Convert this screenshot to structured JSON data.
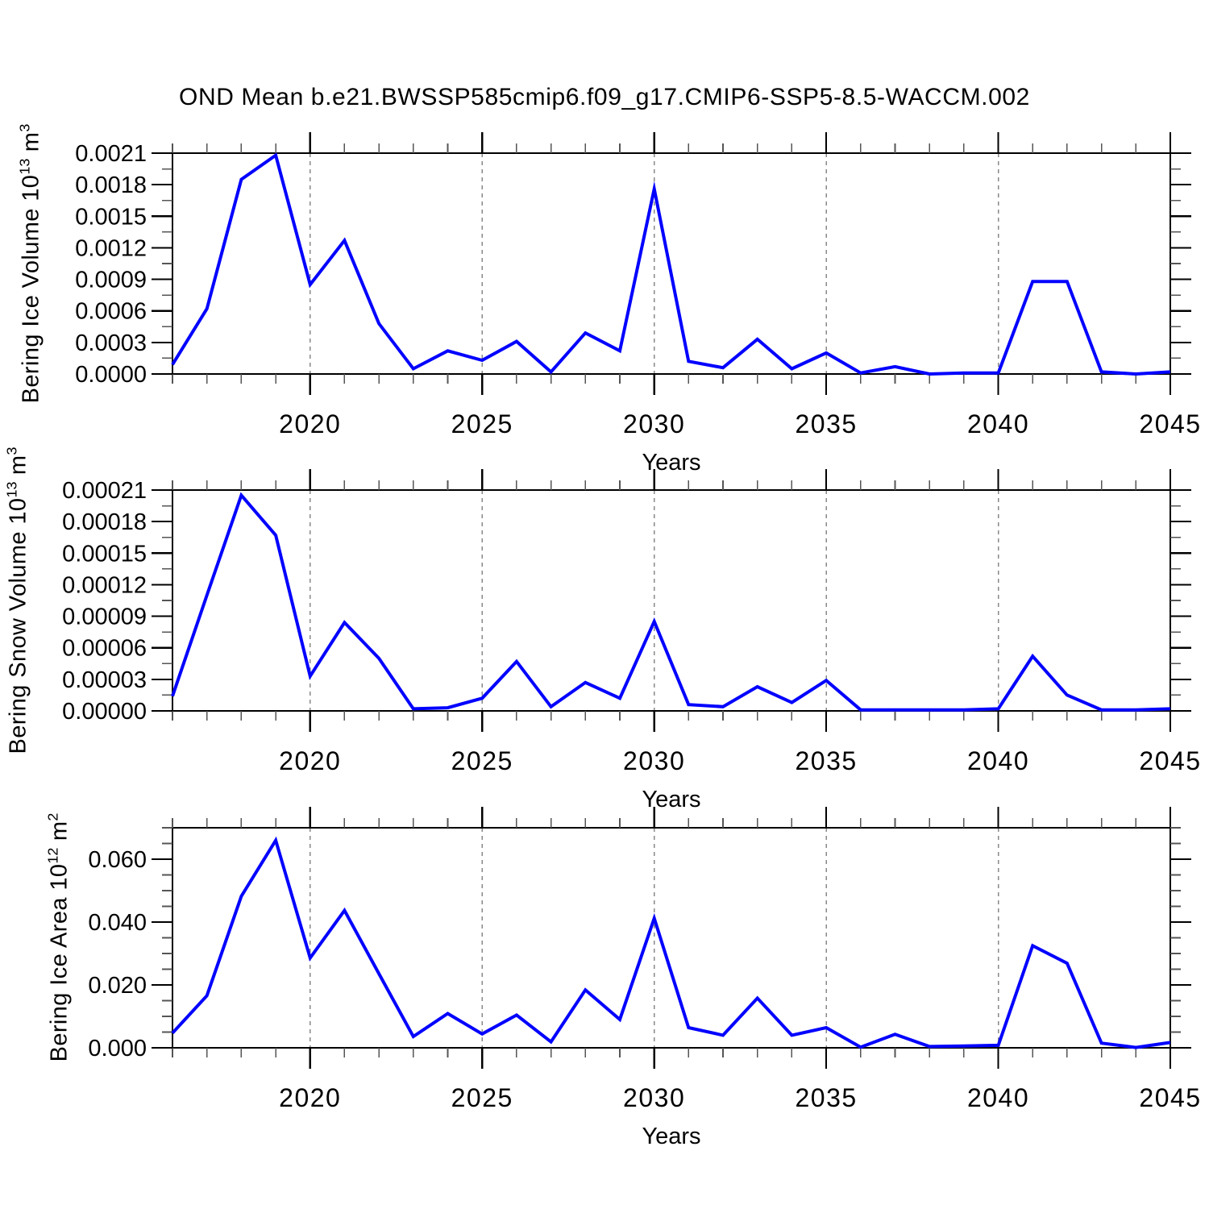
{
  "title": "OND Mean b.e21.BWSSP585cmip6.f09_g17.CMIP6-SSP5-8.5-WACCM.002",
  "chart_data": {
    "type": "line",
    "title": "OND Mean b.e21.BWSSP585cmip6.f09_g17.CMIP6-SSP5-8.5-WACCM.002",
    "xlabel": "Years",
    "xlim": [
      2016,
      2045
    ],
    "x_major_ticks": [
      2020,
      2025,
      2030,
      2035,
      2040,
      2045
    ],
    "x_minor_step": 1,
    "x_gridlines": [
      2020,
      2025,
      2030,
      2035,
      2040
    ],
    "grid_style": "dashed-vertical",
    "legend": "none",
    "line_color": "#0000ff",
    "x": [
      2016,
      2017,
      2018,
      2019,
      2020,
      2021,
      2022,
      2023,
      2024,
      2025,
      2026,
      2027,
      2028,
      2029,
      2030,
      2031,
      2032,
      2033,
      2034,
      2035,
      2036,
      2037,
      2038,
      2039,
      2040,
      2041,
      2042,
      2043,
      2044,
      2045
    ],
    "subplots": [
      {
        "name": "bering-ice-volume",
        "ylabel_text": "Bering Ice Volume 10",
        "ylabel_exp": "13",
        "ylabel_unit": " m",
        "ylabel_unit_exp": "3",
        "ylim": [
          0,
          0.0021
        ],
        "ytick_values": [
          0.0,
          0.0003,
          0.0006,
          0.0009,
          0.0012,
          0.0015,
          0.0018,
          0.0021
        ],
        "ytick_labels": [
          "0.0000",
          "0.0003",
          "0.0006",
          "0.0009",
          "0.0012",
          "0.0015",
          "0.0018",
          "0.0021"
        ],
        "y_minor_step": 0.00015,
        "values": [
          9e-05,
          0.00062,
          0.00185,
          0.00208,
          0.00085,
          0.00127,
          0.00048,
          5e-05,
          0.00022,
          0.00013,
          0.00031,
          2e-05,
          0.00039,
          0.00022,
          0.00176,
          0.00012,
          6e-05,
          0.00033,
          5e-05,
          0.0002,
          1e-05,
          7e-05,
          0.0,
          1e-05,
          1e-05,
          0.00088,
          0.00088,
          2e-05,
          0.0,
          2e-05
        ]
      },
      {
        "name": "bering-snow-volume",
        "ylabel_text": "Bering Snow Volume 10",
        "ylabel_exp": "13",
        "ylabel_unit": " m",
        "ylabel_unit_exp": "3",
        "ylim": [
          0,
          0.00021
        ],
        "ytick_values": [
          0.0,
          3e-05,
          6e-05,
          9e-05,
          0.00012,
          0.00015,
          0.00018,
          0.00021
        ],
        "ytick_labels": [
          "0.00000",
          "0.00003",
          "0.00006",
          "0.00009",
          "0.00012",
          "0.00015",
          "0.00018",
          "0.00021"
        ],
        "y_minor_step": 1.5e-05,
        "values": [
          1.4e-05,
          0.00011,
          0.000205,
          0.000167,
          3.3e-05,
          8.4e-05,
          5e-05,
          2e-06,
          3e-06,
          1.2e-05,
          4.7e-05,
          4e-06,
          2.7e-05,
          1.2e-05,
          8.5e-05,
          6e-06,
          4e-06,
          2.3e-05,
          8e-06,
          2.9e-05,
          1e-06,
          1e-06,
          1e-06,
          1e-06,
          2e-06,
          5.2e-05,
          1.5e-05,
          1e-06,
          1e-06,
          2e-06
        ]
      },
      {
        "name": "bering-ice-area",
        "ylabel_text": "Bering Ice Area 10",
        "ylabel_exp": "12",
        "ylabel_unit": " m",
        "ylabel_unit_exp": "2",
        "ylim": [
          0,
          0.07
        ],
        "ytick_values": [
          0.0,
          0.02,
          0.04,
          0.06
        ],
        "ytick_labels": [
          "0.000",
          "0.020",
          "0.040",
          "0.060"
        ],
        "y_minor_step": 0.005,
        "values": [
          0.0047,
          0.0166,
          0.0482,
          0.066,
          0.0286,
          0.0437,
          0.0236,
          0.0036,
          0.0109,
          0.0044,
          0.0104,
          0.0019,
          0.0184,
          0.009,
          0.0412,
          0.0064,
          0.004,
          0.0158,
          0.004,
          0.0064,
          0.0002,
          0.0043,
          0.0004,
          0.0006,
          0.0008,
          0.0325,
          0.0269,
          0.0015,
          0.0001,
          0.0017
        ]
      }
    ]
  }
}
